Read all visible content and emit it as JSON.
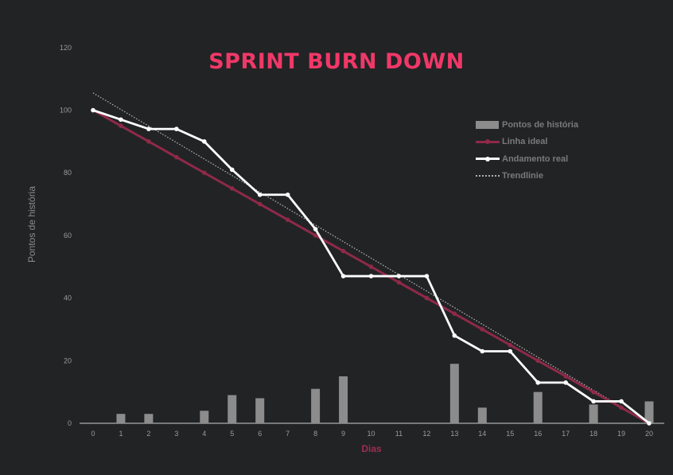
{
  "chart_data": {
    "type": "line",
    "title": "SPRINT BURN DOWN",
    "xlabel": "Dias",
    "ylabel": "Pontos de história",
    "x": [
      0,
      1,
      2,
      3,
      4,
      5,
      6,
      7,
      8,
      9,
      10,
      11,
      12,
      13,
      14,
      15,
      16,
      17,
      18,
      19,
      20
    ],
    "ylim": [
      0,
      120
    ],
    "yticks": [
      0,
      20,
      40,
      60,
      80,
      100,
      120
    ],
    "grid": false,
    "legend_position": "right",
    "series": [
      {
        "name": "Pontos de história",
        "type": "bar",
        "values": [
          0,
          3,
          3,
          0,
          4,
          9,
          8,
          0,
          11,
          15,
          0,
          0,
          0,
          19,
          5,
          0,
          10,
          0,
          6,
          0,
          7
        ]
      },
      {
        "name": "Linha ideal",
        "type": "line",
        "values": [
          100,
          95,
          90,
          85,
          80,
          75,
          70,
          65,
          60,
          55,
          50,
          45,
          40,
          35,
          30,
          25,
          20,
          15,
          10,
          5,
          0
        ]
      },
      {
        "name": "Andamento real",
        "type": "line",
        "values": [
          100,
          97,
          94,
          94,
          90,
          81,
          73,
          73,
          62,
          47,
          47,
          47,
          47,
          28,
          23,
          23,
          13,
          13,
          7,
          7,
          0
        ]
      },
      {
        "name": "Trendlinie",
        "type": "trendline",
        "start": [
          0,
          105.5
        ],
        "end": [
          20,
          0
        ]
      }
    ],
    "colors": {
      "background": "#222325",
      "title": "#f03868",
      "axis_title_x": "#9b2f4f",
      "axis_title_y": "#8a8a8a",
      "tick_text": "#9a9a9a",
      "axis_line": "#cfcfcf",
      "bars": "#8c8c8c",
      "ideal": "#8e2a48",
      "actual": "#ffffff",
      "trend": "#b0b0b0"
    }
  }
}
